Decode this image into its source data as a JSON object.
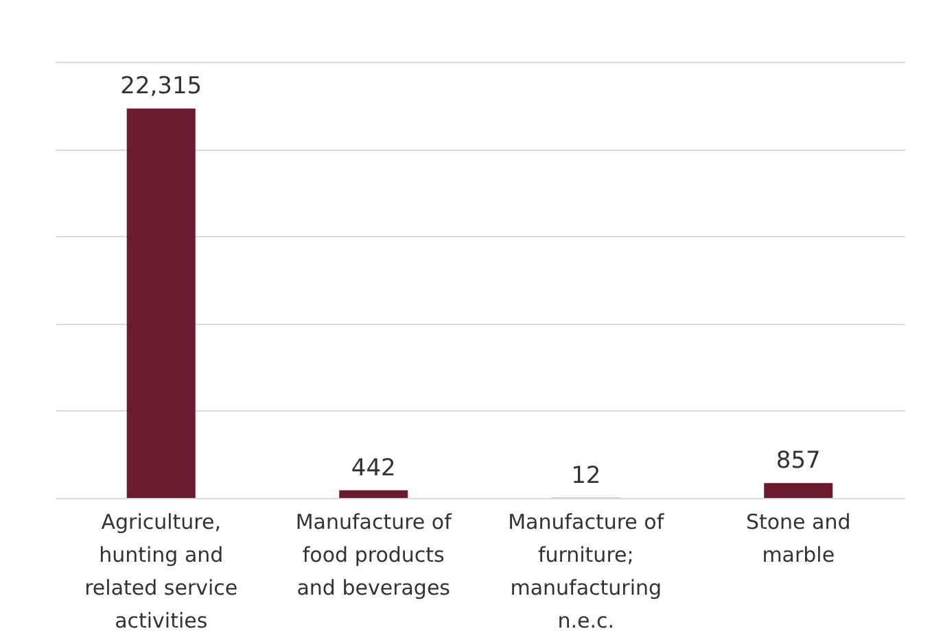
{
  "chart_data": {
    "type": "bar",
    "categories": [
      "Agriculture, hunting and related service activities",
      "Manufacture of food products and beverages",
      "Manufacture of furniture; manufacturing n.e.c.",
      "Stone and marble"
    ],
    "values": [
      22315,
      442,
      12,
      857
    ],
    "color": "#6a1b2e",
    "ylim": [
      0,
      25000
    ],
    "yticks": [
      {
        "value": 0,
        "label": null
      },
      {
        "value": 5000,
        "label": null
      },
      {
        "value": 10000,
        "label": null
      },
      {
        "value": 15000,
        "label": null
      },
      {
        "value": 20000,
        "label": null
      },
      {
        "value": 25000,
        "label": null
      }
    ],
    "tick_labels": "x",
    "grid": "y",
    "value_labels": [
      "22,315",
      "442",
      "12",
      "857"
    ]
  }
}
